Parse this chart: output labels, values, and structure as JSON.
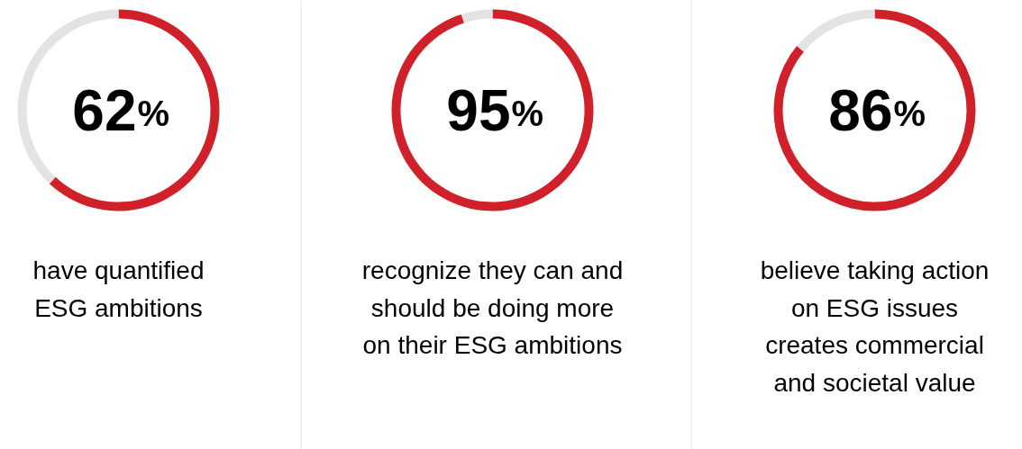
{
  "chart_data": [
    {
      "type": "donut",
      "categories": [
        null,
        null
      ],
      "values": [
        62,
        38
      ],
      "colors": [
        "#d0202a",
        "#e3e3e3"
      ],
      "value_labels": [
        "62%",
        null
      ],
      "annotations": [
        "have quantified\nESG ambitions"
      ]
    },
    {
      "type": "donut",
      "categories": [
        null,
        null
      ],
      "values": [
        95,
        5
      ],
      "colors": [
        "#d0202a",
        "#e3e3e3"
      ],
      "value_labels": [
        "95%",
        null
      ],
      "annotations": [
        "recognize they can and\nshould be doing more\non their ESG ambitions"
      ]
    },
    {
      "type": "donut",
      "categories": [
        null,
        null
      ],
      "values": [
        86,
        14
      ],
      "colors": [
        "#d0202a",
        "#e3e3e3"
      ],
      "value_labels": [
        "86%",
        null
      ],
      "annotations": [
        "believe taking action\non ESG issues\ncreates commercial\nand societal value"
      ]
    }
  ]
}
